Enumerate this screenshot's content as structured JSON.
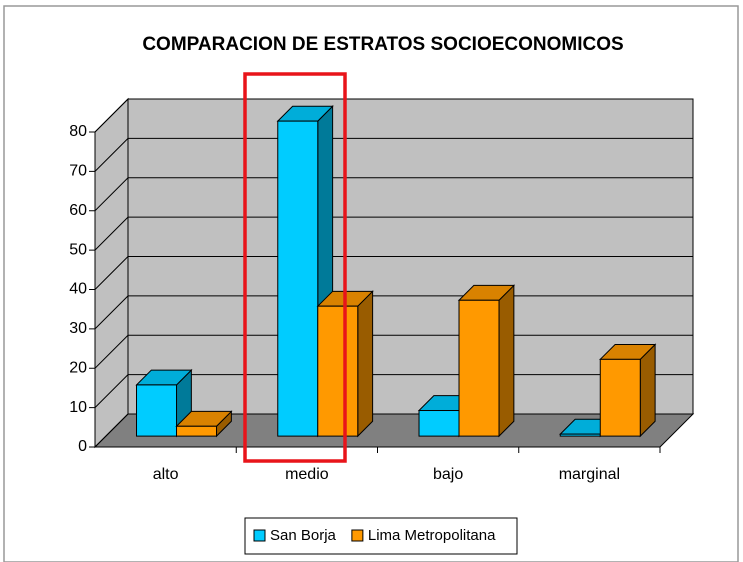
{
  "chart_data": {
    "type": "bar3d",
    "title": "COMPARACION DE ESTRATOS SOCIOECONOMICOS",
    "categories": [
      "alto",
      "medio",
      "bajo",
      "marginal"
    ],
    "series": [
      {
        "name": "San Borja",
        "color": "#00ccff",
        "values": [
          13,
          80,
          6.5,
          0.5
        ]
      },
      {
        "name": "Lima Metropolitana",
        "color": "#ff9900",
        "values": [
          2.5,
          33,
          34.5,
          19.5
        ]
      }
    ],
    "ylim": [
      0,
      80
    ],
    "yticks": [
      0,
      10,
      20,
      30,
      40,
      50,
      60,
      70,
      80
    ],
    "grid": true
  }
}
